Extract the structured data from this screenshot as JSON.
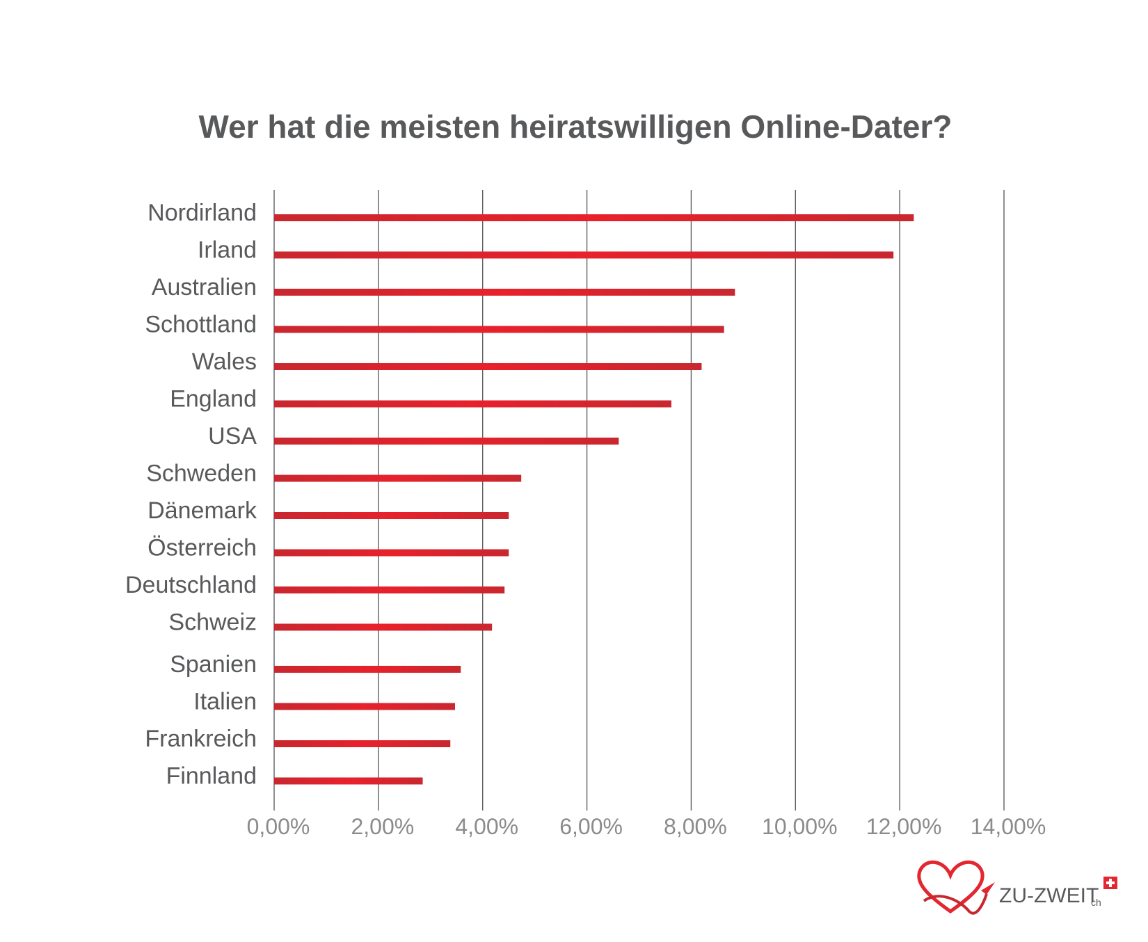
{
  "colors": {
    "bar": "#d32530",
    "bar_light": "#e8212b",
    "grid": "#5e5e60",
    "text": "#58595b",
    "tick_text": "#8a8b8d"
  },
  "chart_data": {
    "type": "bar",
    "orientation": "horizontal",
    "title": "Wer hat die meisten heiratswilligen Online-Dater?",
    "xlabel": "",
    "ylabel": "",
    "xlim": [
      0,
      14
    ],
    "grid": true,
    "x_ticks": [
      "0,00%",
      "2,00%",
      "4,00%",
      "6,00%",
      "8,00%",
      "10,00%",
      "12,00%",
      "14,00%"
    ],
    "categories": [
      "Nordirland",
      "Irland",
      "Australien",
      "Schottland",
      "Wales",
      "England",
      "USA",
      "Schweden",
      "Dänemark",
      "Österreich",
      "Deutschland",
      "Schweiz",
      "Spanien",
      "Italien",
      "Frankreich",
      "Finnland"
    ],
    "values": [
      12.27,
      11.88,
      8.84,
      8.63,
      8.2,
      7.62,
      6.61,
      4.74,
      4.5,
      4.5,
      4.42,
      4.18,
      3.58,
      3.47,
      3.38,
      2.85
    ],
    "unit": "%"
  },
  "logo": {
    "brand": "ZU-ZWEIT",
    "suffix": "ch",
    "icon": "heart-ribbon-icon",
    "flag_icon": "swiss-flag-icon"
  }
}
